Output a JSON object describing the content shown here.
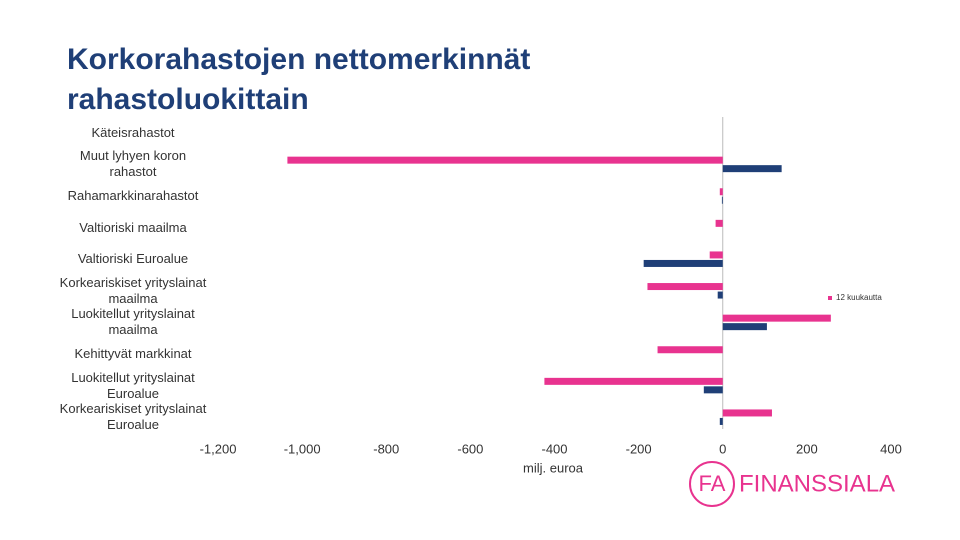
{
  "chart_data": {
    "type": "barh",
    "title": "Korkorahastojen nettomerkinnät rahastoluokittain",
    "xlabel": "milj. euroa",
    "categories": [
      "Käteisrahastot",
      "Muut lyhyen koron rahastot",
      "Rahamarkkinarahastot",
      "Valtioriski maailma",
      "Valtioriski Euroalue",
      "Korkeariskiset yrityslainat maailma",
      "Luokitellut yrityslainat maailma",
      "Kehittyvät markkinat",
      "Luokitellut yrityslainat Euroalue",
      "Korkeariskiset yrityslainat Euroalue"
    ],
    "series": [
      {
        "name": "12 kuukautta",
        "color": "#e8338f",
        "values": [
          0,
          -1035,
          -7,
          -17,
          -31,
          -179,
          257,
          -155,
          -424,
          117
        ]
      },
      {
        "color": "#1f3f77",
        "values": [
          0,
          140,
          -2,
          0,
          -188,
          -12,
          105,
          0,
          -45,
          -7
        ]
      }
    ],
    "xlim": [
      -1200,
      400
    ],
    "xticks": [
      {
        "value": -1200,
        "label": "-1,200"
      },
      {
        "value": -1000,
        "label": "-1,000"
      },
      -800,
      -600,
      -400,
      -200,
      0,
      200,
      400
    ],
    "legend": "right"
  },
  "logo": {
    "mark": "FA",
    "text": "FINANSSIALA"
  }
}
